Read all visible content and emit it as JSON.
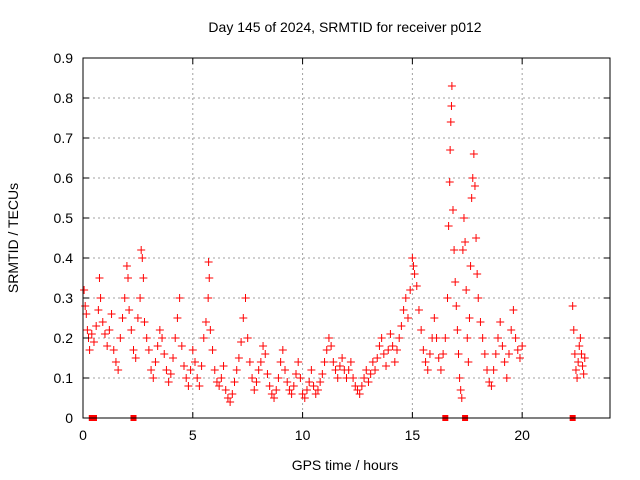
{
  "chart_data": {
    "type": "scatter",
    "title": "Day 145 of 2024, SRMTID for receiver p012",
    "xlabel": "GPS time / hours",
    "ylabel": "SRMTID / TECUs",
    "xlim": [
      0,
      24
    ],
    "ylim": [
      0,
      0.9
    ],
    "xticks": [
      0,
      5,
      10,
      15,
      20
    ],
    "xtick_labels": [
      "0",
      "5",
      "10",
      "15",
      "20"
    ],
    "yticks": [
      0,
      0.1,
      0.2,
      0.3,
      0.4,
      0.5,
      0.6,
      0.7,
      0.8,
      0.9
    ],
    "ytick_labels": [
      "0",
      "0.1",
      "0.2",
      "0.3",
      "0.4",
      "0.5",
      "0.6",
      "0.7",
      "0.8",
      "0.9"
    ],
    "grid": true,
    "marker": "plus",
    "color": "#ff0000",
    "gap_markers_x": [
      0.4,
      0.5,
      2.3,
      16.5,
      17.4,
      22.3
    ],
    "series": [
      {
        "name": "SRMTID",
        "points": [
          [
            0.05,
            0.32
          ],
          [
            0.1,
            0.28
          ],
          [
            0.15,
            0.26
          ],
          [
            0.2,
            0.22
          ],
          [
            0.25,
            0.2
          ],
          [
            0.3,
            0.17
          ],
          [
            0.4,
            0.21
          ],
          [
            0.5,
            0.19
          ],
          [
            0.6,
            0.23
          ],
          [
            0.7,
            0.27
          ],
          [
            0.75,
            0.35
          ],
          [
            0.8,
            0.3
          ],
          [
            0.9,
            0.24
          ],
          [
            1.0,
            0.21
          ],
          [
            1.1,
            0.18
          ],
          [
            1.2,
            0.22
          ],
          [
            1.3,
            0.26
          ],
          [
            1.4,
            0.17
          ],
          [
            1.5,
            0.14
          ],
          [
            1.6,
            0.12
          ],
          [
            1.7,
            0.2
          ],
          [
            1.8,
            0.25
          ],
          [
            1.9,
            0.3
          ],
          [
            2.0,
            0.38
          ],
          [
            2.05,
            0.35
          ],
          [
            2.1,
            0.27
          ],
          [
            2.2,
            0.22
          ],
          [
            2.3,
            0.17
          ],
          [
            2.4,
            0.15
          ],
          [
            2.5,
            0.25
          ],
          [
            2.6,
            0.3
          ],
          [
            2.65,
            0.42
          ],
          [
            2.7,
            0.4
          ],
          [
            2.75,
            0.35
          ],
          [
            2.8,
            0.24
          ],
          [
            2.9,
            0.2
          ],
          [
            3.0,
            0.17
          ],
          [
            3.1,
            0.12
          ],
          [
            3.2,
            0.1
          ],
          [
            3.3,
            0.14
          ],
          [
            3.4,
            0.18
          ],
          [
            3.5,
            0.22
          ],
          [
            3.6,
            0.2
          ],
          [
            3.7,
            0.16
          ],
          [
            3.8,
            0.12
          ],
          [
            3.9,
            0.09
          ],
          [
            4.0,
            0.11
          ],
          [
            4.1,
            0.15
          ],
          [
            4.2,
            0.2
          ],
          [
            4.3,
            0.25
          ],
          [
            4.4,
            0.3
          ],
          [
            4.5,
            0.18
          ],
          [
            4.6,
            0.13
          ],
          [
            4.7,
            0.1
          ],
          [
            4.8,
            0.08
          ],
          [
            4.9,
            0.12
          ],
          [
            5.0,
            0.17
          ],
          [
            5.1,
            0.14
          ],
          [
            5.2,
            0.1
          ],
          [
            5.3,
            0.08
          ],
          [
            5.4,
            0.13
          ],
          [
            5.5,
            0.2
          ],
          [
            5.6,
            0.24
          ],
          [
            5.7,
            0.3
          ],
          [
            5.72,
            0.39
          ],
          [
            5.75,
            0.35
          ],
          [
            5.8,
            0.22
          ],
          [
            5.9,
            0.17
          ],
          [
            6.0,
            0.12
          ],
          [
            6.1,
            0.09
          ],
          [
            6.2,
            0.08
          ],
          [
            6.3,
            0.1
          ],
          [
            6.4,
            0.13
          ],
          [
            6.5,
            0.07
          ],
          [
            6.6,
            0.05
          ],
          [
            6.7,
            0.04
          ],
          [
            6.8,
            0.06
          ],
          [
            6.9,
            0.09
          ],
          [
            7.0,
            0.12
          ],
          [
            7.1,
            0.15
          ],
          [
            7.2,
            0.19
          ],
          [
            7.3,
            0.25
          ],
          [
            7.4,
            0.3
          ],
          [
            7.5,
            0.2
          ],
          [
            7.6,
            0.14
          ],
          [
            7.7,
            0.1
          ],
          [
            7.8,
            0.07
          ],
          [
            7.9,
            0.09
          ],
          [
            8.0,
            0.12
          ],
          [
            8.1,
            0.14
          ],
          [
            8.2,
            0.18
          ],
          [
            8.3,
            0.16
          ],
          [
            8.4,
            0.11
          ],
          [
            8.5,
            0.08
          ],
          [
            8.6,
            0.06
          ],
          [
            8.7,
            0.05
          ],
          [
            8.8,
            0.07
          ],
          [
            8.9,
            0.1
          ],
          [
            9.0,
            0.14
          ],
          [
            9.1,
            0.17
          ],
          [
            9.2,
            0.12
          ],
          [
            9.3,
            0.09
          ],
          [
            9.4,
            0.07
          ],
          [
            9.5,
            0.06
          ],
          [
            9.6,
            0.08
          ],
          [
            9.7,
            0.11
          ],
          [
            9.8,
            0.14
          ],
          [
            9.9,
            0.1
          ],
          [
            10.0,
            0.06
          ],
          [
            10.1,
            0.05
          ],
          [
            10.2,
            0.07
          ],
          [
            10.3,
            0.09
          ],
          [
            10.4,
            0.12
          ],
          [
            10.5,
            0.08
          ],
          [
            10.6,
            0.06
          ],
          [
            10.7,
            0.07
          ],
          [
            10.8,
            0.09
          ],
          [
            10.9,
            0.11
          ],
          [
            11.0,
            0.14
          ],
          [
            11.1,
            0.17
          ],
          [
            11.2,
            0.2
          ],
          [
            11.3,
            0.18
          ],
          [
            11.4,
            0.14
          ],
          [
            11.5,
            0.12
          ],
          [
            11.6,
            0.1
          ],
          [
            11.7,
            0.13
          ],
          [
            11.8,
            0.15
          ],
          [
            11.9,
            0.12
          ],
          [
            12.0,
            0.1
          ],
          [
            12.1,
            0.12
          ],
          [
            12.2,
            0.14
          ],
          [
            12.3,
            0.1
          ],
          [
            12.4,
            0.08
          ],
          [
            12.5,
            0.07
          ],
          [
            12.6,
            0.06
          ],
          [
            12.7,
            0.08
          ],
          [
            12.8,
            0.1
          ],
          [
            12.9,
            0.12
          ],
          [
            13.0,
            0.09
          ],
          [
            13.1,
            0.11
          ],
          [
            13.2,
            0.14
          ],
          [
            13.3,
            0.12
          ],
          [
            13.4,
            0.15
          ],
          [
            13.5,
            0.18
          ],
          [
            13.6,
            0.2
          ],
          [
            13.7,
            0.16
          ],
          [
            13.8,
            0.13
          ],
          [
            13.9,
            0.17
          ],
          [
            14.0,
            0.21
          ],
          [
            14.1,
            0.18
          ],
          [
            14.2,
            0.14
          ],
          [
            14.3,
            0.17
          ],
          [
            14.4,
            0.2
          ],
          [
            14.5,
            0.23
          ],
          [
            14.6,
            0.27
          ],
          [
            14.7,
            0.3
          ],
          [
            14.8,
            0.25
          ],
          [
            14.9,
            0.32
          ],
          [
            15.0,
            0.4
          ],
          [
            15.05,
            0.38
          ],
          [
            15.1,
            0.36
          ],
          [
            15.2,
            0.33
          ],
          [
            15.3,
            0.27
          ],
          [
            15.4,
            0.22
          ],
          [
            15.5,
            0.17
          ],
          [
            15.6,
            0.14
          ],
          [
            15.7,
            0.12
          ],
          [
            15.8,
            0.16
          ],
          [
            15.9,
            0.2
          ],
          [
            16.0,
            0.25
          ],
          [
            16.1,
            0.2
          ],
          [
            16.2,
            0.15
          ],
          [
            16.3,
            0.12
          ],
          [
            16.4,
            0.16
          ],
          [
            16.5,
            0.2
          ],
          [
            16.6,
            0.3
          ],
          [
            16.65,
            0.48
          ],
          [
            16.7,
            0.59
          ],
          [
            16.72,
            0.67
          ],
          [
            16.75,
            0.74
          ],
          [
            16.78,
            0.78
          ],
          [
            16.8,
            0.83
          ],
          [
            16.85,
            0.52
          ],
          [
            16.9,
            0.42
          ],
          [
            16.95,
            0.34
          ],
          [
            17.0,
            0.28
          ],
          [
            17.05,
            0.22
          ],
          [
            17.1,
            0.16
          ],
          [
            17.15,
            0.1
          ],
          [
            17.2,
            0.07
          ],
          [
            17.25,
            0.05
          ],
          [
            17.3,
            0.42
          ],
          [
            17.35,
            0.5
          ],
          [
            17.4,
            0.44
          ],
          [
            17.45,
            0.32
          ],
          [
            17.5,
            0.2
          ],
          [
            17.55,
            0.14
          ],
          [
            17.6,
            0.25
          ],
          [
            17.65,
            0.38
          ],
          [
            17.7,
            0.55
          ],
          [
            17.75,
            0.6
          ],
          [
            17.8,
            0.66
          ],
          [
            17.85,
            0.58
          ],
          [
            17.9,
            0.45
          ],
          [
            17.95,
            0.36
          ],
          [
            18.0,
            0.3
          ],
          [
            18.1,
            0.24
          ],
          [
            18.2,
            0.2
          ],
          [
            18.3,
            0.16
          ],
          [
            18.4,
            0.12
          ],
          [
            18.5,
            0.09
          ],
          [
            18.6,
            0.08
          ],
          [
            18.7,
            0.12
          ],
          [
            18.8,
            0.16
          ],
          [
            18.9,
            0.2
          ],
          [
            19.0,
            0.24
          ],
          [
            19.1,
            0.18
          ],
          [
            19.2,
            0.14
          ],
          [
            19.3,
            0.1
          ],
          [
            19.4,
            0.16
          ],
          [
            19.5,
            0.22
          ],
          [
            19.6,
            0.27
          ],
          [
            19.7,
            0.2
          ],
          [
            19.8,
            0.17
          ],
          [
            19.9,
            0.15
          ],
          [
            20.0,
            0.18
          ],
          [
            22.3,
            0.28
          ],
          [
            22.35,
            0.22
          ],
          [
            22.4,
            0.16
          ],
          [
            22.45,
            0.12
          ],
          [
            22.5,
            0.1
          ],
          [
            22.55,
            0.14
          ],
          [
            22.6,
            0.18
          ],
          [
            22.65,
            0.2
          ],
          [
            22.7,
            0.16
          ],
          [
            22.75,
            0.13
          ],
          [
            22.8,
            0.11
          ],
          [
            22.85,
            0.15
          ]
        ]
      }
    ]
  }
}
